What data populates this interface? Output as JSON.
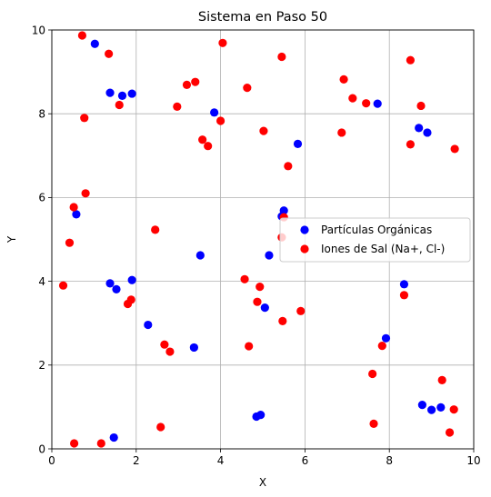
{
  "chart_data": {
    "type": "scatter",
    "title": "Sistema en Paso 50",
    "xlabel": "X",
    "ylabel": "Y",
    "xlim": [
      0,
      10
    ],
    "ylim": [
      0,
      10
    ],
    "x_ticks": [
      0,
      2,
      4,
      6,
      8,
      10
    ],
    "y_ticks": [
      0,
      2,
      4,
      6,
      8,
      10
    ],
    "grid": true,
    "legend_position": "center-right",
    "series": [
      {
        "name": "Partículas Orgánicas",
        "color": "#0000ff",
        "points": [
          [
            1.02,
            9.67
          ],
          [
            1.38,
            8.5
          ],
          [
            1.67,
            8.43
          ],
          [
            1.9,
            8.48
          ],
          [
            3.85,
            8.03
          ],
          [
            7.72,
            8.24
          ],
          [
            8.7,
            7.66
          ],
          [
            8.9,
            7.55
          ],
          [
            5.83,
            7.28
          ],
          [
            0.58,
            5.6
          ],
          [
            5.5,
            5.69
          ],
          [
            5.45,
            5.55
          ],
          [
            3.52,
            4.62
          ],
          [
            5.15,
            4.62
          ],
          [
            1.38,
            3.95
          ],
          [
            1.53,
            3.81
          ],
          [
            1.9,
            4.03
          ],
          [
            5.05,
            3.37
          ],
          [
            8.35,
            3.93
          ],
          [
            2.28,
            2.96
          ],
          [
            7.92,
            2.64
          ],
          [
            3.37,
            2.42
          ],
          [
            4.85,
            0.77
          ],
          [
            4.95,
            0.81
          ],
          [
            8.78,
            1.05
          ],
          [
            9.0,
            0.93
          ],
          [
            9.22,
            0.99
          ],
          [
            1.47,
            0.27
          ]
        ]
      },
      {
        "name": "Iones de Sal (Na+, Cl-)",
        "color": "#ff0000",
        "points": [
          [
            0.72,
            9.87
          ],
          [
            1.35,
            9.43
          ],
          [
            4.05,
            9.69
          ],
          [
            5.45,
            9.36
          ],
          [
            8.5,
            9.28
          ],
          [
            6.92,
            8.82
          ],
          [
            3.4,
            8.76
          ],
          [
            3.2,
            8.69
          ],
          [
            4.63,
            8.62
          ],
          [
            7.13,
            8.37
          ],
          [
            7.45,
            8.25
          ],
          [
            2.97,
            8.17
          ],
          [
            1.6,
            8.21
          ],
          [
            8.75,
            8.19
          ],
          [
            0.77,
            7.9
          ],
          [
            4.0,
            7.83
          ],
          [
            5.02,
            7.59
          ],
          [
            6.87,
            7.55
          ],
          [
            3.57,
            7.38
          ],
          [
            3.7,
            7.23
          ],
          [
            8.5,
            7.27
          ],
          [
            9.55,
            7.16
          ],
          [
            5.6,
            6.75
          ],
          [
            0.8,
            6.1
          ],
          [
            0.52,
            5.77
          ],
          [
            5.5,
            5.53
          ],
          [
            2.45,
            5.23
          ],
          [
            5.45,
            5.05
          ],
          [
            0.42,
            4.92
          ],
          [
            4.57,
            4.05
          ],
          [
            0.27,
            3.9
          ],
          [
            4.93,
            3.87
          ],
          [
            4.87,
            3.51
          ],
          [
            1.88,
            3.56
          ],
          [
            1.8,
            3.46
          ],
          [
            5.9,
            3.29
          ],
          [
            8.35,
            3.67
          ],
          [
            5.47,
            3.05
          ],
          [
            2.67,
            2.49
          ],
          [
            2.8,
            2.32
          ],
          [
            4.67,
            2.45
          ],
          [
            7.83,
            2.46
          ],
          [
            7.6,
            1.79
          ],
          [
            9.25,
            1.64
          ],
          [
            9.53,
            0.94
          ],
          [
            7.63,
            0.6
          ],
          [
            9.43,
            0.39
          ],
          [
            2.58,
            0.52
          ],
          [
            1.17,
            0.13
          ],
          [
            0.53,
            0.13
          ]
        ]
      }
    ]
  }
}
